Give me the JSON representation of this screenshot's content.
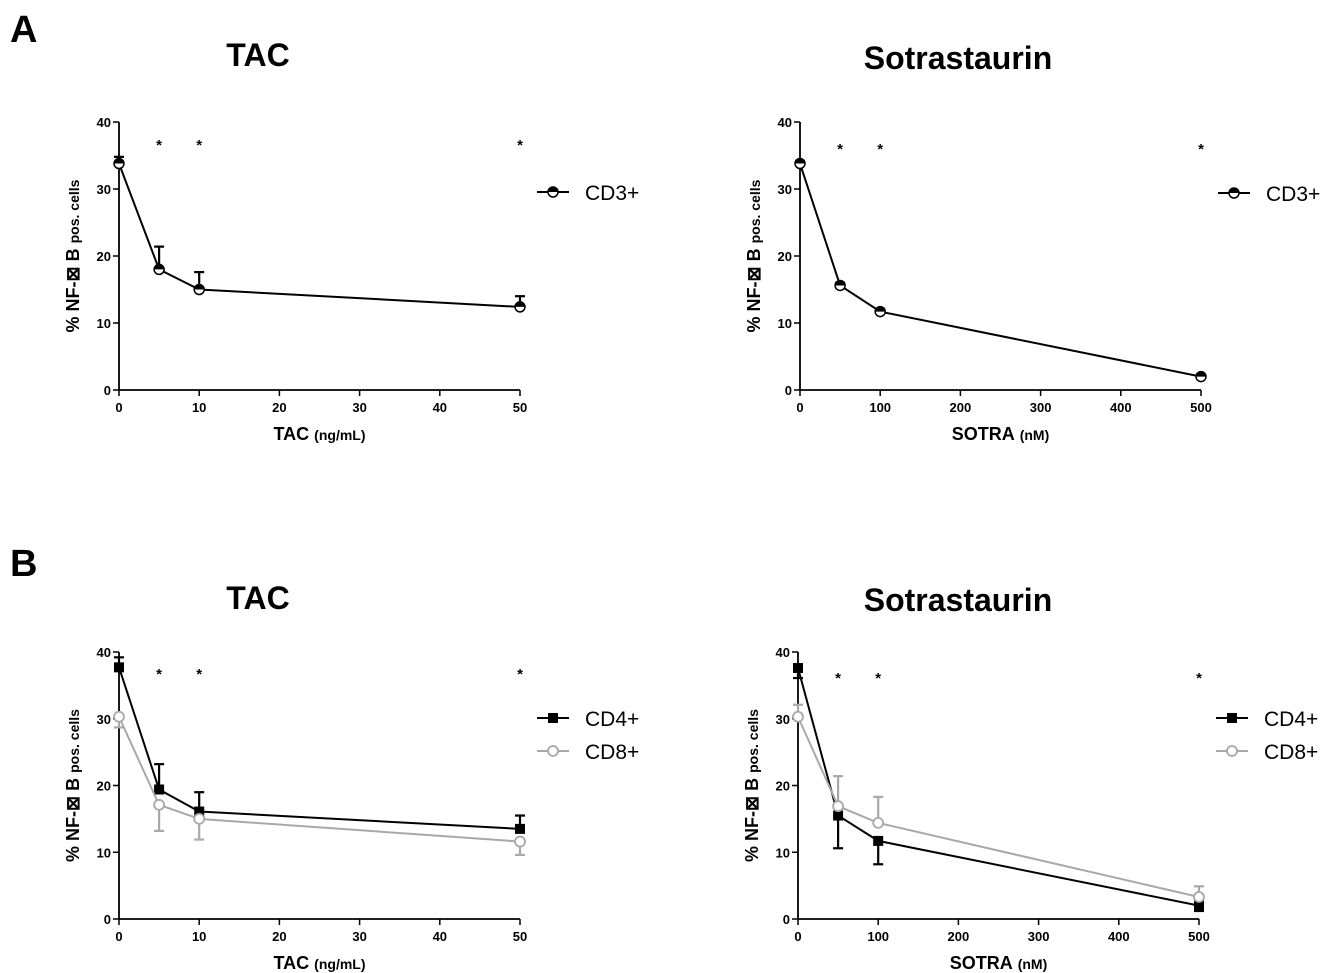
{
  "panels": [
    {
      "letter": "A"
    },
    {
      "letter": "B"
    }
  ],
  "chart_data": [
    {
      "type": "line",
      "panel": "A",
      "title": "TAC",
      "xlabel_main": "TAC",
      "xlabel_unit": "(ng/mL)",
      "ylabel_main": "% NF-⊠ B",
      "ylabel_unit": "pos. cells",
      "xlim": [
        0,
        50
      ],
      "ylim": [
        0,
        40
      ],
      "xticks": [
        0,
        10,
        20,
        30,
        40,
        50
      ],
      "yticks": [
        0,
        10,
        20,
        30,
        40
      ],
      "x": [
        0,
        5,
        10,
        50
      ],
      "significance": [
        "",
        "*",
        "*",
        "*"
      ],
      "legend_position": "right",
      "grid": false,
      "series": [
        {
          "name": "CD3+",
          "marker": "half-circle",
          "color": "#000000",
          "values": [
            33.8,
            18.0,
            15.0,
            12.4
          ],
          "errors": [
            1.0,
            3.4,
            2.6,
            1.6
          ]
        }
      ]
    },
    {
      "type": "line",
      "panel": "A",
      "title": "Sotrastaurin",
      "xlabel_main": "SOTRA",
      "xlabel_unit": "(nM)",
      "ylabel_main": "% NF-⊠ B",
      "ylabel_unit": "pos. cells",
      "xlim": [
        0,
        500
      ],
      "ylim": [
        0,
        40
      ],
      "xticks": [
        0,
        100,
        200,
        300,
        400,
        500
      ],
      "yticks": [
        0,
        10,
        20,
        30,
        40
      ],
      "x": [
        0,
        50,
        100,
        500
      ],
      "significance": [
        "",
        "*",
        "*",
        "*"
      ],
      "legend_position": "right",
      "grid": false,
      "series": [
        {
          "name": "CD3+",
          "marker": "half-circle",
          "color": "#000000",
          "values": [
            33.8,
            15.6,
            11.7,
            2.0
          ],
          "errors": [
            0.4,
            0.4,
            0.4,
            0.3
          ]
        }
      ]
    },
    {
      "type": "line",
      "panel": "B",
      "title": "TAC",
      "xlabel_main": "TAC",
      "xlabel_unit": "(ng/mL)",
      "ylabel_main": "% NF-⊠ B",
      "ylabel_unit": "pos. cells",
      "xlim": [
        0,
        50
      ],
      "ylim": [
        0,
        40
      ],
      "xticks": [
        0,
        10,
        20,
        30,
        40,
        50
      ],
      "yticks": [
        0,
        10,
        20,
        30,
        40
      ],
      "x": [
        0,
        5,
        10,
        50
      ],
      "significance": [
        "",
        "*",
        "*",
        "*"
      ],
      "legend_position": "right",
      "grid": false,
      "series": [
        {
          "name": "CD4+",
          "marker": "square",
          "color": "#000000",
          "values": [
            37.7,
            19.4,
            16.1,
            13.5
          ],
          "errors": [
            1.5,
            3.8,
            2.9,
            2.0
          ],
          "err_dir": "up"
        },
        {
          "name": "CD8+",
          "marker": "circle",
          "color": "#a8a8a8",
          "values": [
            30.3,
            17.1,
            15.0,
            11.6
          ],
          "errors": [
            1.6,
            3.9,
            3.1,
            2.0
          ],
          "err_dir": "down"
        }
      ]
    },
    {
      "type": "line",
      "panel": "B",
      "title": "Sotrastaurin",
      "xlabel_main": "SOTRA",
      "xlabel_unit": "(nM)",
      "ylabel_main": "% NF-⊠ B",
      "ylabel_unit": "pos. cells",
      "xlim": [
        0,
        500
      ],
      "ylim": [
        0,
        40
      ],
      "xticks": [
        0,
        100,
        200,
        300,
        400,
        500
      ],
      "yticks": [
        0,
        10,
        20,
        30,
        40
      ],
      "x": [
        0,
        50,
        100,
        500
      ],
      "significance": [
        "",
        "*",
        "*",
        "*"
      ],
      "legend_position": "right",
      "grid": false,
      "series": [
        {
          "name": "CD4+",
          "marker": "square",
          "color": "#000000",
          "values": [
            37.6,
            15.5,
            11.7,
            2.0
          ],
          "errors": [
            1.5,
            4.9,
            3.5,
            0.8
          ],
          "err_dir": "down"
        },
        {
          "name": "CD8+",
          "marker": "circle",
          "color": "#a8a8a8",
          "values": [
            30.3,
            16.9,
            14.4,
            3.3
          ],
          "errors": [
            1.8,
            4.5,
            3.9,
            1.6
          ],
          "err_dir": "up"
        }
      ]
    }
  ]
}
